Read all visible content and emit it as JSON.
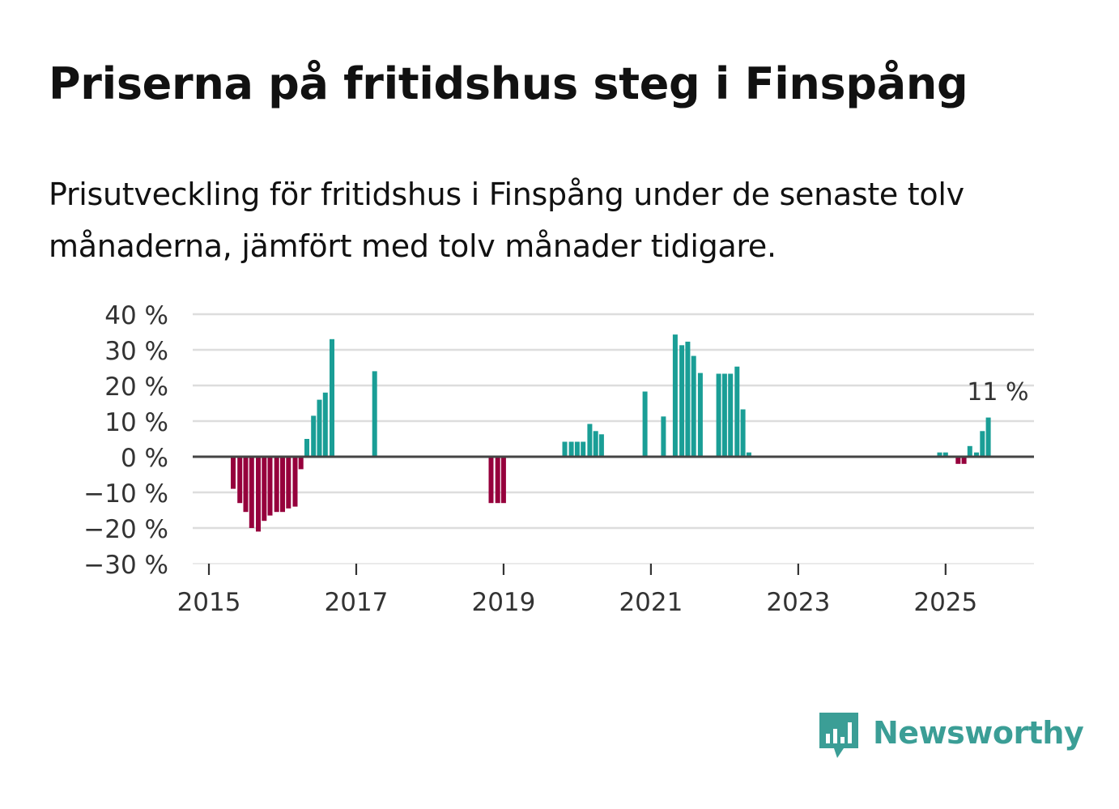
{
  "header": {
    "title": "Priserna på fritidshus steg i Finspång",
    "subtitle": "Prisutveckling för fritidshus i Finspång under de senaste tolv månaderna, jämfört med tolv månader tidigare."
  },
  "brand": {
    "name": "Newsworthy",
    "icon": "bar-chart-speech-bubble-icon"
  },
  "colors": {
    "positive": "#1a9e96",
    "negative": "#96003c",
    "grid": "#dddddd",
    "zero_line": "#444444"
  },
  "chart_data": {
    "type": "bar",
    "title": "Priserna på fritidshus steg i Finspång",
    "xlabel": "",
    "ylabel": "",
    "ylim": [
      -30,
      40
    ],
    "yticks": [
      40,
      30,
      20,
      10,
      0,
      -10,
      -20,
      -30
    ],
    "ytick_labels": [
      "40 %",
      "30 %",
      "20 %",
      "10 %",
      "0 %",
      "−10 %",
      "−20 %",
      "−30 %"
    ],
    "xticks": [
      2015,
      2017,
      2019,
      2021,
      2023,
      2025
    ],
    "xtick_labels": [
      "2015",
      "2017",
      "2019",
      "2021",
      "2023",
      "2025"
    ],
    "xlim": [
      2014.78,
      2026.2
    ],
    "grid": true,
    "annotation": {
      "text": "11 %",
      "x": 2025.71,
      "y": 11
    },
    "series": [
      {
        "name": "Prisutveckling",
        "points": [
          {
            "x": 2015.33,
            "y": -9
          },
          {
            "x": 2015.42,
            "y": -13
          },
          {
            "x": 2015.5,
            "y": -15.5
          },
          {
            "x": 2015.58,
            "y": -20
          },
          {
            "x": 2015.67,
            "y": -21
          },
          {
            "x": 2015.75,
            "y": -18
          },
          {
            "x": 2015.83,
            "y": -16.5
          },
          {
            "x": 2015.92,
            "y": -15.5
          },
          {
            "x": 2016.0,
            "y": -15.5
          },
          {
            "x": 2016.08,
            "y": -14.5
          },
          {
            "x": 2016.17,
            "y": -14
          },
          {
            "x": 2016.25,
            "y": -3.5
          },
          {
            "x": 2016.33,
            "y": 5
          },
          {
            "x": 2016.42,
            "y": 11.5
          },
          {
            "x": 2016.5,
            "y": 16
          },
          {
            "x": 2016.58,
            "y": 18
          },
          {
            "x": 2016.67,
            "y": 33
          },
          {
            "x": 2017.25,
            "y": 24
          },
          {
            "x": 2018.83,
            "y": -13
          },
          {
            "x": 2018.92,
            "y": -13
          },
          {
            "x": 2019.0,
            "y": -13
          },
          {
            "x": 2019.83,
            "y": 4.2
          },
          {
            "x": 2019.92,
            "y": 4.2
          },
          {
            "x": 2020.0,
            "y": 4.2
          },
          {
            "x": 2020.08,
            "y": 4.2
          },
          {
            "x": 2020.17,
            "y": 9.2
          },
          {
            "x": 2020.25,
            "y": 7.2
          },
          {
            "x": 2020.33,
            "y": 6.3
          },
          {
            "x": 2020.92,
            "y": 18.3
          },
          {
            "x": 2021.17,
            "y": 11.3
          },
          {
            "x": 2021.33,
            "y": 34.3
          },
          {
            "x": 2021.42,
            "y": 31.3
          },
          {
            "x": 2021.5,
            "y": 32.3
          },
          {
            "x": 2021.58,
            "y": 28.3
          },
          {
            "x": 2021.67,
            "y": 23.5
          },
          {
            "x": 2021.92,
            "y": 23.3
          },
          {
            "x": 2022.0,
            "y": 23.3
          },
          {
            "x": 2022.08,
            "y": 23.3
          },
          {
            "x": 2022.17,
            "y": 25.3
          },
          {
            "x": 2022.25,
            "y": 13.3
          },
          {
            "x": 2022.33,
            "y": 1.2
          },
          {
            "x": 2024.92,
            "y": 1.2
          },
          {
            "x": 2025.0,
            "y": 1.2
          },
          {
            "x": 2025.17,
            "y": -2
          },
          {
            "x": 2025.25,
            "y": -2
          },
          {
            "x": 2025.33,
            "y": 3
          },
          {
            "x": 2025.42,
            "y": 1.2
          },
          {
            "x": 2025.5,
            "y": 7.2
          },
          {
            "x": 2025.58,
            "y": 11
          }
        ]
      }
    ]
  }
}
